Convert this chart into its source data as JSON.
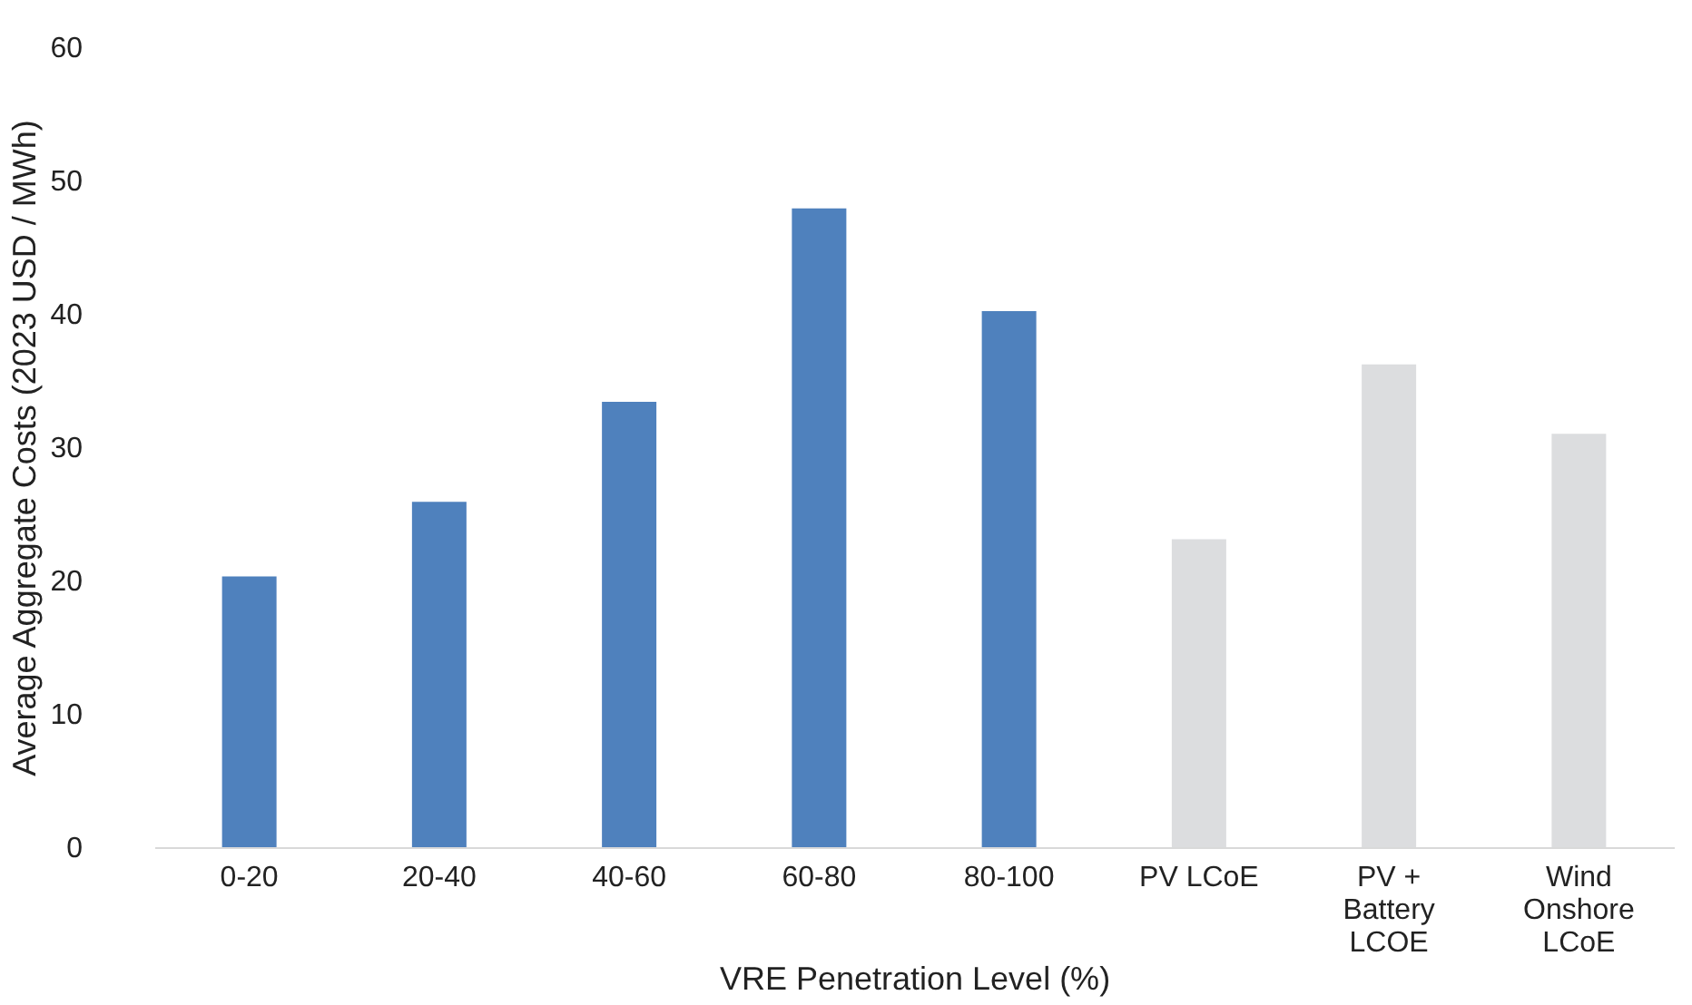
{
  "chart_data": {
    "type": "bar",
    "xlabel": "VRE Penetration Level (%)",
    "ylabel": "Average Aggregate Costs (2023 USD / MWh)",
    "categories": [
      "0-20",
      "20-40",
      "40-60",
      "60-80",
      "80-100",
      "PV LCoE",
      "PV + Battery LCOE",
      "Wind Onshore LCoE"
    ],
    "values": [
      20.3,
      25.9,
      33.4,
      47.9,
      40.2,
      23.1,
      36.2,
      31.0
    ],
    "colors": [
      "#4f81bd",
      "#4f81bd",
      "#4f81bd",
      "#4f81bd",
      "#4f81bd",
      "#dcdddf",
      "#dcdddf",
      "#dcdddf"
    ],
    "ylim": [
      0,
      60
    ],
    "yticks": [
      0,
      10,
      20,
      30,
      40,
      50,
      60
    ],
    "grid": false
  }
}
